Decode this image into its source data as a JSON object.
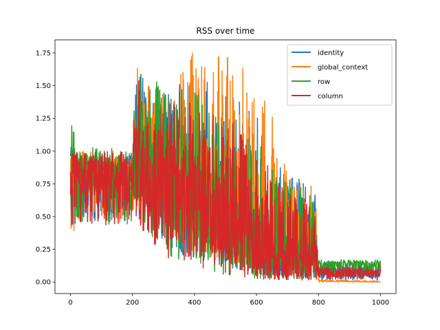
{
  "chart_data": {
    "type": "line",
    "title": "RSS over time",
    "xlabel": "",
    "ylabel": "",
    "xlim": [
      -50,
      1050
    ],
    "ylim": [
      -0.088,
      1.85
    ],
    "x_ticks": [
      0,
      200,
      400,
      600,
      800,
      1000
    ],
    "y_ticks": [
      0.0,
      0.25,
      0.5,
      0.75,
      1.0,
      1.25,
      1.5,
      1.75
    ],
    "y_tick_labels": [
      "0.00",
      "0.25",
      "0.50",
      "0.75",
      "1.00",
      "1.25",
      "1.50",
      "1.75"
    ],
    "grid": false,
    "legend_position": "upper-right",
    "series": [
      {
        "name": "identity",
        "color": "#1f77b4",
        "profile": [
          [
            0,
            0.8,
            0.3,
            1.05
          ],
          [
            20,
            0.82,
            0.45,
            1.0
          ],
          [
            200,
            0.78,
            0.45,
            1.0
          ],
          [
            210,
            0.95,
            0.5,
            1.65
          ],
          [
            300,
            0.8,
            0.3,
            1.45
          ],
          [
            400,
            0.65,
            0.15,
            1.6
          ],
          [
            500,
            0.55,
            0.1,
            1.5
          ],
          [
            600,
            0.35,
            0.05,
            1.3
          ],
          [
            700,
            0.22,
            0.03,
            0.8
          ],
          [
            790,
            0.2,
            0.02,
            0.8
          ],
          [
            800,
            0.08,
            0.01,
            0.12
          ],
          [
            1000,
            0.06,
            0.01,
            0.12
          ]
        ]
      },
      {
        "name": "global_context",
        "color": "#ff7f0e",
        "profile": [
          [
            0,
            0.8,
            0.3,
            1.05
          ],
          [
            20,
            0.82,
            0.45,
            1.0
          ],
          [
            200,
            0.78,
            0.45,
            1.0
          ],
          [
            210,
            0.95,
            0.5,
            1.65
          ],
          [
            300,
            0.85,
            0.35,
            1.55
          ],
          [
            400,
            0.7,
            0.2,
            1.78
          ],
          [
            500,
            0.65,
            0.15,
            1.75
          ],
          [
            600,
            0.55,
            0.1,
            1.55
          ],
          [
            700,
            0.4,
            0.05,
            1.0
          ],
          [
            790,
            0.35,
            0.03,
            0.7
          ],
          [
            800,
            0.01,
            0.0,
            0.02
          ],
          [
            1000,
            0.0,
            0.0,
            0.01
          ]
        ]
      },
      {
        "name": "row",
        "color": "#2ca02c",
        "profile": [
          [
            0,
            0.85,
            0.4,
            1.26
          ],
          [
            20,
            0.82,
            0.45,
            1.05
          ],
          [
            200,
            0.78,
            0.4,
            1.0
          ],
          [
            210,
            0.95,
            0.45,
            1.68
          ],
          [
            300,
            0.8,
            0.2,
            1.5
          ],
          [
            400,
            0.65,
            0.1,
            1.45
          ],
          [
            500,
            0.5,
            0.05,
            1.3
          ],
          [
            600,
            0.3,
            0.03,
            1.1
          ],
          [
            700,
            0.2,
            0.03,
            0.75
          ],
          [
            790,
            0.2,
            0.02,
            0.7
          ],
          [
            800,
            0.13,
            0.05,
            0.17
          ],
          [
            1000,
            0.13,
            0.05,
            0.17
          ]
        ]
      },
      {
        "name": "column",
        "color": "#d62728",
        "profile": [
          [
            0,
            0.8,
            0.4,
            1.05
          ],
          [
            20,
            0.82,
            0.45,
            1.0
          ],
          [
            200,
            0.78,
            0.4,
            1.0
          ],
          [
            210,
            0.95,
            0.45,
            1.68
          ],
          [
            300,
            0.8,
            0.2,
            1.4
          ],
          [
            400,
            0.65,
            0.1,
            1.4
          ],
          [
            500,
            0.5,
            0.05,
            1.3
          ],
          [
            600,
            0.3,
            0.02,
            1.0
          ],
          [
            700,
            0.15,
            0.02,
            0.7
          ],
          [
            790,
            0.15,
            0.01,
            0.6
          ],
          [
            800,
            0.07,
            0.02,
            0.12
          ],
          [
            1000,
            0.07,
            0.02,
            0.12
          ]
        ]
      }
    ]
  }
}
